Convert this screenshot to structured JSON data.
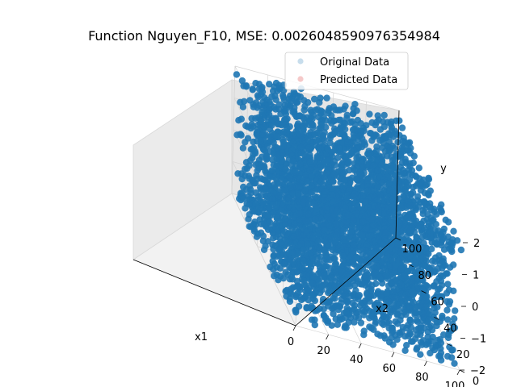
{
  "chart_data": {
    "type": "scatter",
    "projection": "3d",
    "title": "Function Nguyen_F10, MSE: 0.0026048590976354984",
    "xlabel": "x1",
    "ylabel": "x2",
    "zlabel": "y",
    "xlim": [
      0,
      100
    ],
    "ylim": [
      0,
      100
    ],
    "zlim": [
      -2,
      2
    ],
    "xticks": [
      "0",
      "20",
      "40",
      "60",
      "80",
      "100"
    ],
    "yticks": [
      "0",
      "20",
      "40",
      "60",
      "80",
      "100"
    ],
    "zticks": [
      "−2",
      "−1",
      "0",
      "1",
      "2"
    ],
    "legend_position": "upper-right",
    "series": [
      {
        "name": "Original Data",
        "color": "#1f77b4",
        "alpha": 0.2
      },
      {
        "name": "Predicted Data",
        "color": "#d62728",
        "alpha": 0.2
      }
    ]
  }
}
